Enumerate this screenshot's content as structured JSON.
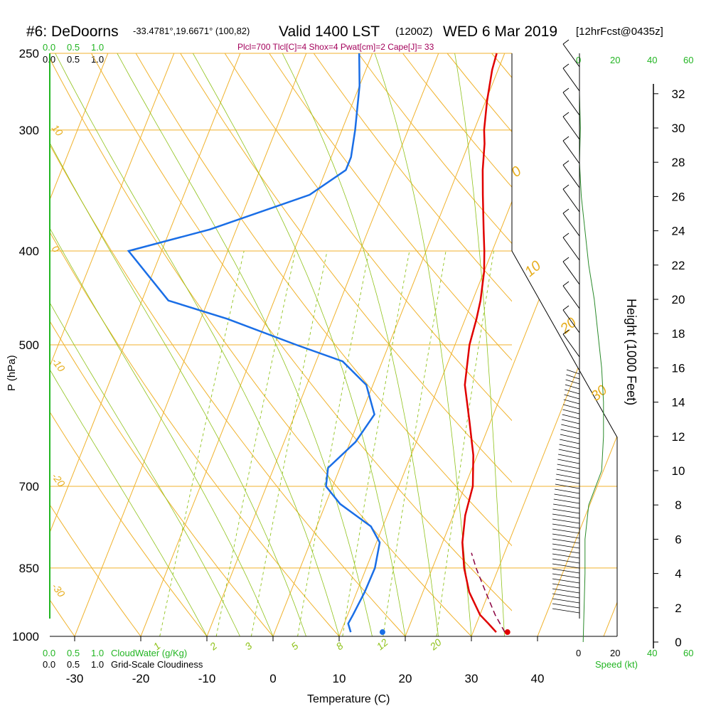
{
  "header": {
    "station": "#6: DeDoorns",
    "coords": "-33.4781°,19.6671° (100,82)",
    "valid": "Valid 1400 LST",
    "zulu": "(1200Z)",
    "date": "WED 6 Mar 2019",
    "forecast": "[12hrFcst@0435z]",
    "params": "Plcl=700 Tlcl[C]=4 Shox=4 Pwat[cm]=2 Cape[J]= 33"
  },
  "legend": {
    "cloudwater_scale": [
      "0.0",
      "0.5",
      "1.0"
    ],
    "cloudiness_scale": [
      "0.0",
      "0.5",
      "1.0"
    ],
    "cloudwater_label": "CloudWater (g/Kg)",
    "cloudiness_label": "Grid-Scale Cloudiness",
    "speed_label": "Speed (kt)",
    "speed_ticks_black": [
      "0",
      "20",
      "40"
    ],
    "speed_ticks_green": [
      "20",
      "40",
      "60"
    ]
  },
  "colors": {
    "temperature": "#e00000",
    "dewpoint": "#1a6ee6",
    "parcel": "#8a0040",
    "isotherm": "#f0b22c",
    "mixing_ratio": "#8fc21a",
    "cloud": "#22b522",
    "wind_speed": "#2a8a2a"
  },
  "chart_data": {
    "type": "skew-t",
    "xlabel": "Temperature (C)",
    "ylabel": "P (hPa)",
    "y2label": "Height (1000 Feet)",
    "x_ticks": [
      -30,
      -20,
      -10,
      0,
      10,
      20,
      30,
      40
    ],
    "p_ticks": [
      250,
      300,
      400,
      500,
      700,
      850,
      1000
    ],
    "height_ticks": [
      0,
      2,
      4,
      6,
      8,
      10,
      12,
      14,
      16,
      18,
      20,
      22,
      24,
      26,
      28,
      30,
      32
    ],
    "isotherm_labels": [
      "10",
      "0",
      "-10",
      "-20",
      "-30",
      "0",
      "10",
      "20",
      "30"
    ],
    "mixing_ratio_labels": [
      "1",
      "2",
      "3",
      "5",
      "8",
      "12",
      "20"
    ],
    "temperature": [
      [
        990,
        33.5
      ],
      [
        970,
        31.8
      ],
      [
        950,
        30
      ],
      [
        900,
        27
      ],
      [
        850,
        24.8
      ],
      [
        800,
        23
      ],
      [
        750,
        21.8
      ],
      [
        700,
        21.2
      ],
      [
        650,
        19.4
      ],
      [
        600,
        16.8
      ],
      [
        550,
        13.9
      ],
      [
        500,
        12.2
      ],
      [
        470,
        11.7
      ],
      [
        450,
        11.2
      ],
      [
        420,
        10
      ],
      [
        400,
        8.8
      ],
      [
        380,
        7.4
      ],
      [
        350,
        5.2
      ],
      [
        330,
        3.7
      ],
      [
        310,
        2.4
      ],
      [
        300,
        1.5
      ],
      [
        280,
        0.2
      ],
      [
        260,
        -0.9
      ],
      [
        250,
        -1.2
      ]
    ],
    "dewpoint": [
      [
        990,
        11.5
      ],
      [
        970,
        10.6
      ],
      [
        950,
        10.8
      ],
      [
        900,
        11.2
      ],
      [
        850,
        11.3
      ],
      [
        800,
        10.5
      ],
      [
        770,
        8.2
      ],
      [
        730,
        2.2
      ],
      [
        700,
        -1
      ],
      [
        670,
        -1.8
      ],
      [
        630,
        0.8
      ],
      [
        590,
        2
      ],
      [
        550,
        -1
      ],
      [
        520,
        -6
      ],
      [
        500,
        -14
      ],
      [
        470,
        -26
      ],
      [
        450,
        -36
      ],
      [
        400,
        -45
      ],
      [
        380,
        -34
      ],
      [
        350,
        -21
      ],
      [
        330,
        -17
      ],
      [
        320,
        -17
      ],
      [
        300,
        -18
      ],
      [
        270,
        -20
      ],
      [
        250,
        -22
      ]
    ],
    "parcel": [
      [
        990,
        34.8
      ],
      [
        950,
        32.3
      ],
      [
        900,
        29.5
      ],
      [
        850,
        26.6
      ],
      [
        820,
        25
      ]
    ],
    "surface_temperature": 35.2,
    "surface_dewpoint": 16.3,
    "surface_pressure": 990,
    "wind_speed_kt": [
      [
        0,
        2
      ],
      [
        2,
        2.5
      ],
      [
        4,
        3
      ],
      [
        6,
        3
      ],
      [
        8,
        5
      ],
      [
        10,
        12
      ],
      [
        12,
        13
      ],
      [
        14,
        13
      ],
      [
        16,
        12
      ],
      [
        18,
        10
      ],
      [
        20,
        8
      ],
      [
        22,
        5
      ],
      [
        24,
        3
      ],
      [
        26,
        1
      ],
      [
        28,
        0
      ],
      [
        30,
        0.5
      ],
      [
        32,
        0
      ]
    ]
  }
}
